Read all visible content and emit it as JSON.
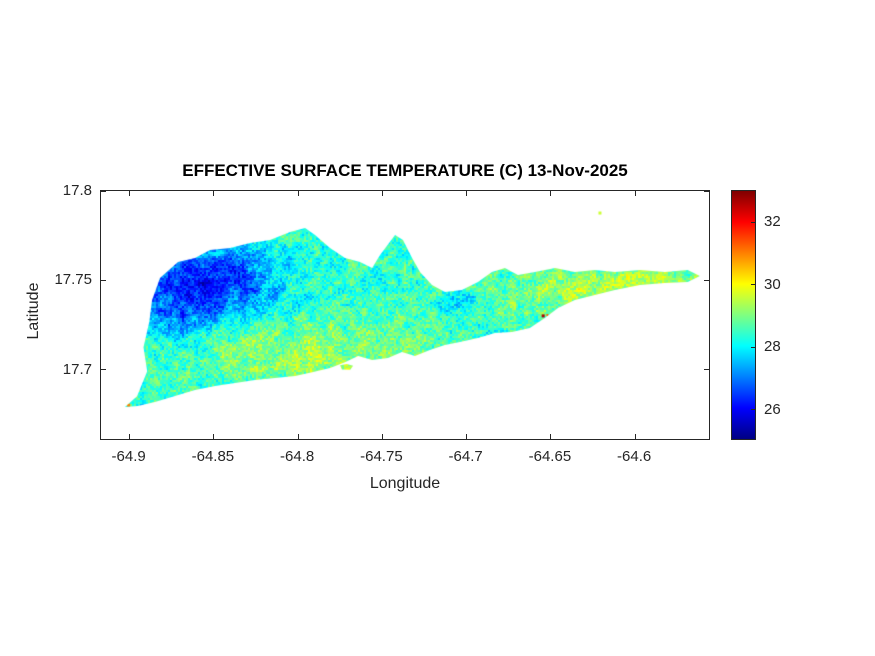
{
  "figure": {
    "background": "#ffffff",
    "axis_color": "#262626"
  },
  "chart_data": {
    "type": "heatmap",
    "title": "EFFECTIVE SURFACE TEMPERATURE (C) 13-Nov-2025",
    "xlabel": "Longitude",
    "ylabel": "Latitude",
    "xlim": [
      -64.917,
      -64.555
    ],
    "ylim": [
      17.66,
      17.8
    ],
    "clim": [
      25,
      33
    ],
    "grid": false,
    "legend_position": "colorbar-right",
    "x_ticks": [
      {
        "v": -64.9,
        "label": "-64.9"
      },
      {
        "v": -64.85,
        "label": "-64.85"
      },
      {
        "v": -64.8,
        "label": "-64.8"
      },
      {
        "v": -64.75,
        "label": "-64.75"
      },
      {
        "v": -64.7,
        "label": "-64.7"
      },
      {
        "v": -64.65,
        "label": "-64.65"
      },
      {
        "v": -64.6,
        "label": "-64.6"
      }
    ],
    "y_ticks": [
      {
        "v": 17.8,
        "label": "17.8"
      },
      {
        "v": 17.75,
        "label": "17.75"
      },
      {
        "v": 17.7,
        "label": "17.7"
      }
    ],
    "colorbar_ticks": [
      {
        "v": 26,
        "label": "26"
      },
      {
        "v": 28,
        "label": "28"
      },
      {
        "v": 30,
        "label": "30"
      },
      {
        "v": 32,
        "label": "32"
      }
    ],
    "colormap": {
      "name": "jet",
      "stops": [
        [
          0,
          [
            0,
            0,
            131
          ]
        ],
        [
          0.125,
          [
            0,
            0,
            255
          ]
        ],
        [
          0.375,
          [
            0,
            255,
            255
          ]
        ],
        [
          0.625,
          [
            255,
            255,
            0
          ]
        ],
        [
          0.875,
          [
            255,
            0,
            0
          ]
        ],
        [
          1,
          [
            128,
            0,
            0
          ]
        ]
      ]
    },
    "island_outline": [
      [
        -64.9022,
        17.6785
      ],
      [
        -64.895,
        17.6845
      ],
      [
        -64.889,
        17.6985
      ],
      [
        -64.8912,
        17.712
      ],
      [
        -64.8878,
        17.726
      ],
      [
        -64.8861,
        17.7384
      ],
      [
        -64.8814,
        17.7507
      ],
      [
        -64.8707,
        17.7597
      ],
      [
        -64.8606,
        17.7619
      ],
      [
        -64.8517,
        17.7664
      ],
      [
        -64.8398,
        17.7675
      ],
      [
        -64.828,
        17.7703
      ],
      [
        -64.8161,
        17.772
      ],
      [
        -64.8042,
        17.7765
      ],
      [
        -64.7953,
        17.7787
      ],
      [
        -64.7894,
        17.7748
      ],
      [
        -64.7805,
        17.7675
      ],
      [
        -64.7716,
        17.7619
      ],
      [
        -64.7627,
        17.7597
      ],
      [
        -64.7555,
        17.7563
      ],
      [
        -64.7508,
        17.7636
      ],
      [
        -64.7419,
        17.7748
      ],
      [
        -64.7372,
        17.772
      ],
      [
        -64.7318,
        17.7619
      ],
      [
        -64.7271,
        17.7541
      ],
      [
        -64.72,
        17.7468
      ],
      [
        -64.7123,
        17.7429
      ],
      [
        -64.7022,
        17.744
      ],
      [
        -64.6927,
        17.7485
      ],
      [
        -64.6844,
        17.7541
      ],
      [
        -64.6767,
        17.7563
      ],
      [
        -64.669,
        17.7524
      ],
      [
        -64.6589,
        17.7541
      ],
      [
        -64.647,
        17.7563
      ],
      [
        -64.6352,
        17.7541
      ],
      [
        -64.6233,
        17.7552
      ],
      [
        -64.6114,
        17.7541
      ],
      [
        -64.5966,
        17.7552
      ],
      [
        -64.5818,
        17.7541
      ],
      [
        -64.5682,
        17.7552
      ],
      [
        -64.561,
        17.7518
      ],
      [
        -64.5682,
        17.7485
      ],
      [
        -64.5818,
        17.7479
      ],
      [
        -64.5966,
        17.7468
      ],
      [
        -64.6114,
        17.744
      ],
      [
        -64.6233,
        17.7412
      ],
      [
        -64.6352,
        17.7384
      ],
      [
        -64.6452,
        17.7339
      ],
      [
        -64.653,
        17.7283
      ],
      [
        -64.6619,
        17.7227
      ],
      [
        -64.6725,
        17.7205
      ],
      [
        -64.6826,
        17.7199
      ],
      [
        -64.6927,
        17.7171
      ],
      [
        -64.7034,
        17.7149
      ],
      [
        -64.7123,
        17.7132
      ],
      [
        -64.7212,
        17.7104
      ],
      [
        -64.7301,
        17.707
      ],
      [
        -64.7378,
        17.7093
      ],
      [
        -64.7461,
        17.7059
      ],
      [
        -64.7555,
        17.7048
      ],
      [
        -64.7638,
        17.707
      ],
      [
        -64.7716,
        17.7036
      ],
      [
        -64.7805,
        17.7003
      ],
      [
        -64.7911,
        17.698
      ],
      [
        -64.8012,
        17.6958
      ],
      [
        -64.8131,
        17.6947
      ],
      [
        -64.825,
        17.6936
      ],
      [
        -64.8368,
        17.6919
      ],
      [
        -64.8487,
        17.6902
      ],
      [
        -64.8606,
        17.688
      ],
      [
        -64.8725,
        17.6846
      ],
      [
        -64.8844,
        17.6813
      ],
      [
        -64.8945,
        17.679
      ]
    ],
    "cay_outline": [
      [
        -64.7745,
        17.7018
      ],
      [
        -64.7705,
        17.7026
      ],
      [
        -64.7668,
        17.7016
      ],
      [
        -64.7685,
        17.6993
      ],
      [
        -64.7735,
        17.6995
      ]
    ],
    "offshore_speck": {
      "lon": -64.6203,
      "lat": 17.7871,
      "temp": 29.6,
      "size": 3
    },
    "hot_spots": [
      {
        "lon": -64.654,
        "lat": 17.7295,
        "temp": 32.6,
        "size": 3
      },
      {
        "lon": -64.6515,
        "lat": 17.73,
        "temp": 31.2,
        "size": 2
      },
      {
        "lon": -64.9,
        "lat": 17.6795,
        "temp": 31.0,
        "size": 3
      }
    ],
    "field": {
      "base": 28.4,
      "speckle": 0.55,
      "noise_amp": 0.5,
      "noise_scale": 0.004,
      "clamp": [
        25.2,
        32.8
      ],
      "features": [
        {
          "amp": -2.3,
          "cx": -64.853,
          "cy": 17.749,
          "sx": 0.028,
          "sy": 0.015
        },
        {
          "amp": -0.9,
          "cx": -64.872,
          "cy": 17.729,
          "sx": 0.013,
          "sy": 0.011
        },
        {
          "amp": -1.0,
          "cx": -64.706,
          "cy": 17.737,
          "sx": 0.009,
          "sy": 0.005
        },
        {
          "amp": 0.85,
          "cx": -64.795,
          "cy": 17.709,
          "sx": 0.05,
          "sy": 0.012
        },
        {
          "amp": 0.85,
          "cx": -64.628,
          "cy": 17.7425,
          "sx": 0.048,
          "sy": 0.01
        },
        {
          "amp": 0.5,
          "cx": -64.585,
          "cy": 17.752,
          "sx": 0.02,
          "sy": 0.006
        }
      ]
    }
  }
}
